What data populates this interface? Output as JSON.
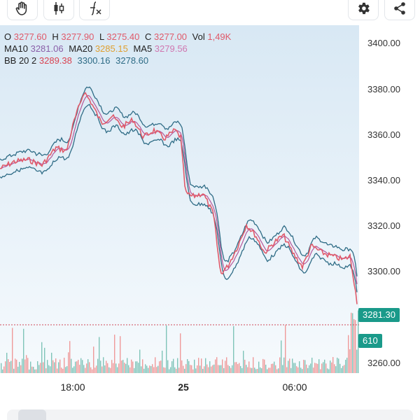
{
  "toolbar": {
    "icons": [
      "hand-icon",
      "candlestick-icon",
      "indicator-icon",
      "settings-icon",
      "share-icon"
    ]
  },
  "legend": {
    "line1": [
      {
        "key": "O",
        "value": "3277.60"
      },
      {
        "key": "H",
        "value": "3277.90"
      },
      {
        "key": "L",
        "value": "3275.40"
      },
      {
        "key": "C",
        "value": "3277.00"
      },
      {
        "key": "Vol",
        "value": "1,49K"
      }
    ],
    "line2": [
      {
        "key": "MA10",
        "value": "3281.06"
      },
      {
        "key": "MA20",
        "value": "3285.15"
      },
      {
        "key": "MA5",
        "value": "3279.56"
      }
    ],
    "line3": {
      "key": "BB 20 2",
      "values": [
        "3289.38",
        "3300.16",
        "3278.60"
      ]
    }
  },
  "price_axis": {
    "labels": [
      "3400.00",
      "3380.00",
      "3360.00",
      "3340.00",
      "3320.00",
      "3300.00",
      "3260.00"
    ],
    "current_price": "3281.30",
    "current_volume": "610"
  },
  "time_axis": {
    "labels": [
      "18:00",
      "25",
      "06:00"
    ]
  },
  "colors": {
    "price_line": "#e05a6a",
    "band_line": "#2f6c86",
    "tag_green": "#1a9a8a",
    "vol_up": "#7fc4b8",
    "vol_down": "#ef9a9a"
  },
  "chart_data": {
    "type": "line",
    "x": [
      "18:00",
      "25",
      "06:00"
    ],
    "series": [],
    "ylim": [
      3260,
      3400
    ]
  }
}
